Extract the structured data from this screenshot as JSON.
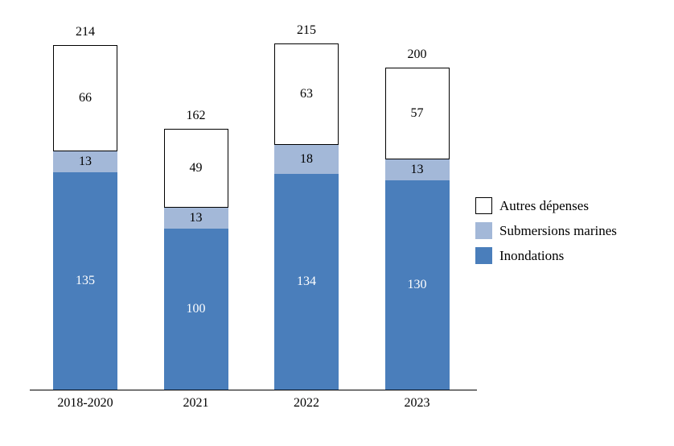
{
  "chart_data": {
    "type": "bar",
    "stacked": true,
    "title": "",
    "xlabel": "",
    "ylabel": "",
    "grid": false,
    "legend_position": "right",
    "ylim": [
      0,
      215
    ],
    "categories": [
      "2018-2020",
      "2021",
      "2022",
      "2023"
    ],
    "series": [
      {
        "name": "Inondations",
        "color": "#4a7ebb",
        "text_color": "#ffffff",
        "values": [
          135,
          100,
          134,
          130
        ]
      },
      {
        "name": "Submersions marines",
        "color": "#a3b8d8",
        "text_color": "#000000",
        "values": [
          13,
          13,
          18,
          13
        ]
      },
      {
        "name": "Autres dépenses",
        "color": "#ffffff",
        "border": "#000000",
        "text_color": "#000000",
        "values": [
          66,
          49,
          63,
          57
        ]
      }
    ],
    "totals": [
      214,
      162,
      215,
      200
    ],
    "legend": [
      "Autres dépenses",
      "Submersions marines",
      "Inondations"
    ]
  }
}
